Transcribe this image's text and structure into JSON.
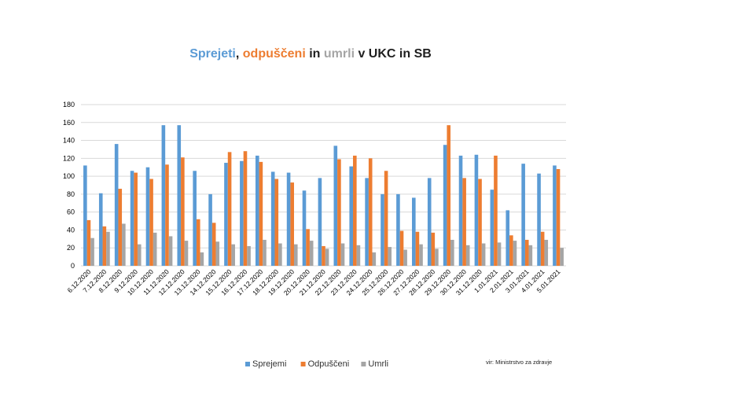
{
  "colors": {
    "Sprejemi": "#5b9bd5",
    "Odpuščeni": "#ed7d31",
    "Umrli": "#a5a5a5",
    "title_text": "#1f1f1f",
    "grid": "#d9d9d9"
  },
  "title_parts": [
    {
      "text": "Sprejeti",
      "color": "#5b9bd5"
    },
    {
      "text": ", ",
      "color": "#1f1f1f"
    },
    {
      "text": "odpuščeni",
      "color": "#ed7d31"
    },
    {
      "text": " in ",
      "color": "#1f1f1f"
    },
    {
      "text": "umrli",
      "color": "#a5a5a5"
    },
    {
      "text": " v UKC in SB",
      "color": "#1f1f1f"
    }
  ],
  "source_note": "vir: Ministrstvo za zdravje",
  "chart_data": {
    "type": "bar",
    "title": "Sprejeti, odpuščeni in umrli v UKC in SB",
    "xlabel": "",
    "ylabel": "",
    "ylim": [
      0,
      180
    ],
    "yticks": [
      0,
      20,
      40,
      60,
      80,
      100,
      120,
      140,
      160,
      180
    ],
    "grid": true,
    "legend_position": "bottom",
    "categories": [
      "6.12.2020",
      "7.12.2020",
      "8.12.2020",
      "9.12.2020",
      "10.12.2020",
      "11.12.2020",
      "12.12.2020",
      "13.12.2020",
      "14.12.2020",
      "15.12.2020",
      "16.12.2020",
      "17.12.2020",
      "18.12.2020",
      "19.12.2020",
      "20.12.2020",
      "21.12.2020",
      "22.12.2020",
      "23.12.2020",
      "24.12.2020",
      "25.12.2020",
      "26.12.2020",
      "27.12.2020",
      "28.12.2020",
      "29.12.2020",
      "30.12.2020",
      "31.12.2020",
      "1.01.2021",
      "2.01.2021",
      "3.01.2021",
      "4.01.2021",
      "5.01.2021"
    ],
    "series": [
      {
        "name": "Sprejemi",
        "values": [
          112,
          81,
          136,
          106,
          110,
          157,
          157,
          106,
          80,
          115,
          117,
          123,
          105,
          104,
          84,
          98,
          134,
          111,
          98,
          80,
          80,
          76,
          98,
          135,
          123,
          124,
          85,
          62,
          114,
          103,
          112
        ]
      },
      {
        "name": "Odpuščeni",
        "values": [
          51,
          44,
          86,
          104,
          97,
          113,
          121,
          52,
          48,
          127,
          128,
          116,
          97,
          93,
          41,
          22,
          119,
          123,
          120,
          106,
          39,
          38,
          37,
          157,
          98,
          97,
          123,
          34,
          29,
          38,
          108
        ]
      },
      {
        "name": "Umrli",
        "values": [
          31,
          38,
          47,
          24,
          37,
          33,
          28,
          15,
          27,
          24,
          22,
          29,
          25,
          24,
          28,
          19,
          25,
          23,
          15,
          21,
          18,
          24,
          19,
          29,
          23,
          25,
          26,
          28,
          23,
          29,
          20
        ]
      }
    ]
  }
}
